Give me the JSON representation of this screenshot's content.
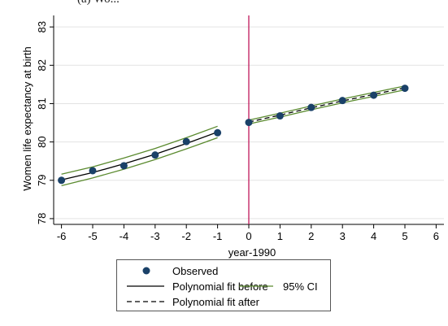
{
  "header": {
    "partial_title": "(a) Wo..."
  },
  "chart_data": {
    "type": "scatter",
    "xlabel": "year-1990",
    "ylabel": "Women life expectancy at birth",
    "xlim": [
      -6.25,
      6.25
    ],
    "ylim": [
      77.85,
      83.3
    ],
    "xticks": [
      -6,
      -5,
      -4,
      -3,
      -2,
      -1,
      0,
      1,
      2,
      3,
      4,
      5,
      6
    ],
    "yticks": [
      78,
      79,
      80,
      81,
      82,
      83
    ],
    "grid": "horizontal",
    "vline_x": 0,
    "observed": {
      "x": [
        -6,
        -5,
        -4,
        -3,
        -2,
        -1,
        0,
        1,
        2,
        3,
        4,
        5
      ],
      "y": [
        79.0,
        79.25,
        79.38,
        79.66,
        80.01,
        80.24,
        80.51,
        80.68,
        80.9,
        81.08,
        81.22,
        81.4
      ]
    },
    "fit_before": {
      "x": [
        -6,
        -5,
        -4,
        -3,
        -2,
        -1
      ],
      "y": [
        79.01,
        79.2,
        79.43,
        79.68,
        79.96,
        80.26
      ],
      "ci_lower": [
        78.86,
        79.06,
        79.29,
        79.54,
        79.82,
        80.11
      ],
      "ci_upper": [
        79.16,
        79.35,
        79.58,
        79.83,
        80.11,
        80.41
      ]
    },
    "fit_after": {
      "x": [
        0,
        1,
        2,
        3,
        4,
        5
      ],
      "y": [
        80.52,
        80.7,
        80.89,
        81.07,
        81.24,
        81.41
      ],
      "ci_lower": [
        80.47,
        80.65,
        80.84,
        81.02,
        81.19,
        81.36
      ],
      "ci_upper": [
        80.57,
        80.75,
        80.94,
        81.12,
        81.29,
        81.46
      ]
    },
    "colors": {
      "observed": "#1a4168",
      "fit": "#000000",
      "ci": "#5a8a2e",
      "vline": "#c0185a",
      "grid": "#e3e3e3"
    },
    "legend": {
      "placement": "bottom",
      "observed": "Observed",
      "fit_before": "Polynomial fit before",
      "fit_after": "Polynomial fit after",
      "ci": "95% CI"
    }
  }
}
